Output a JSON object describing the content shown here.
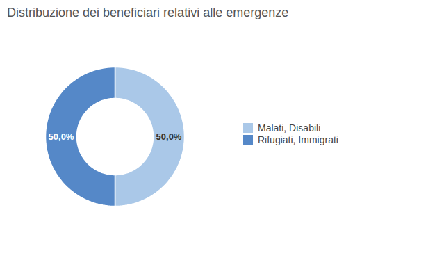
{
  "chart_data": {
    "type": "donut",
    "title": "Distribuzione dei beneficiari relativi alle emergenze",
    "categories": [
      "Malati, Disabili",
      "Rifugiati, Immigrati"
    ],
    "values": [
      50.0,
      50.0
    ],
    "value_labels": [
      "50,0%",
      "50,0%"
    ],
    "colors": [
      "#aac8e8",
      "#5588c8"
    ],
    "data_labels": true,
    "legend": "right"
  }
}
